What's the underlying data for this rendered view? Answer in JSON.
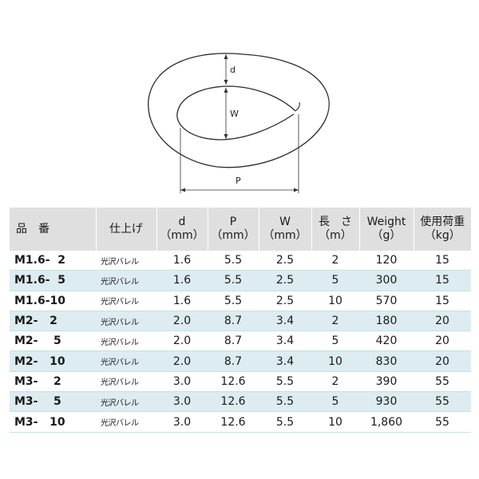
{
  "diagram": {
    "labels": {
      "d": "d",
      "w": "W",
      "p": "P"
    }
  },
  "table": {
    "headers": [
      {
        "line1": "品　番",
        "line2": ""
      },
      {
        "line1": "仕上げ",
        "line2": ""
      },
      {
        "line1": "d",
        "line2": "（mm）"
      },
      {
        "line1": "P",
        "line2": "（mm）"
      },
      {
        "line1": "W",
        "line2": "（mm）"
      },
      {
        "line1": "長　さ",
        "line2": "（m）"
      },
      {
        "line1": "Weight",
        "line2": "（g）"
      },
      {
        "line1": "使用荷重",
        "line2": "（kg）"
      }
    ],
    "rows": [
      {
        "code": "M1.6-  2",
        "finish": "光沢バレル",
        "d": "1.6",
        "p": "5.5",
        "w": "2.5",
        "length": "2",
        "weight": "120",
        "load": "15"
      },
      {
        "code": "M1.6-  5",
        "finish": "光沢バレル",
        "d": "1.6",
        "p": "5.5",
        "w": "2.5",
        "length": "5",
        "weight": "300",
        "load": "15"
      },
      {
        "code": "M1.6-10",
        "finish": "光沢バレル",
        "d": "1.6",
        "p": "5.5",
        "w": "2.5",
        "length": "10",
        "weight": "570",
        "load": "15"
      },
      {
        "code": "M2-   2",
        "finish": "光沢バレル",
        "d": "2.0",
        "p": "8.7",
        "w": "3.4",
        "length": "2",
        "weight": "180",
        "load": "20"
      },
      {
        "code": "M2-    5",
        "finish": "光沢バレル",
        "d": "2.0",
        "p": "8.7",
        "w": "3.4",
        "length": "5",
        "weight": "420",
        "load": "20"
      },
      {
        "code": "M2-   10",
        "finish": "光沢バレル",
        "d": "2.0",
        "p": "8.7",
        "w": "3.4",
        "length": "10",
        "weight": "830",
        "load": "20"
      },
      {
        "code": "M3-    2",
        "finish": "光沢バレル",
        "d": "3.0",
        "p": "12.6",
        "w": "5.5",
        "length": "2",
        "weight": "390",
        "load": "55"
      },
      {
        "code": "M3-    5",
        "finish": "光沢バレル",
        "d": "3.0",
        "p": "12.6",
        "w": "5.5",
        "length": "5",
        "weight": "930",
        "load": "55"
      },
      {
        "code": "M3-   10",
        "finish": "光沢バレル",
        "d": "3.0",
        "p": "12.6",
        "w": "5.5",
        "length": "10",
        "weight": "1,860",
        "load": "55"
      }
    ]
  }
}
